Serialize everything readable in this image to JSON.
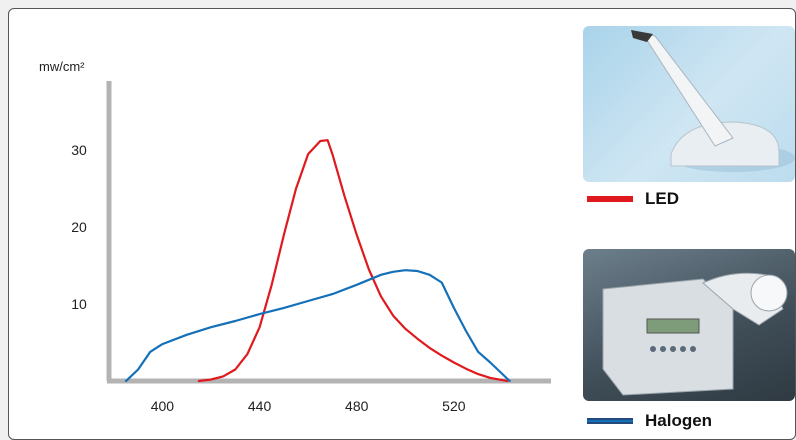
{
  "chart_data": {
    "type": "line",
    "ylabel": "mw/cm²",
    "xlabel": "",
    "x_ticks": [
      400,
      440,
      480,
      520
    ],
    "y_ticks": [
      10,
      20,
      30
    ],
    "xlim": [
      378,
      560
    ],
    "ylim": [
      0,
      39
    ],
    "grid": false,
    "legend_position": "right",
    "series": [
      {
        "name": "LED",
        "color": "#e0191e",
        "x": [
          415,
          420,
          425,
          430,
          435,
          440,
          445,
          450,
          455,
          460,
          465,
          468,
          470,
          475,
          480,
          485,
          490,
          495,
          500,
          505,
          510,
          515,
          520,
          525,
          530,
          535,
          542
        ],
        "y": [
          0,
          0.2,
          0.6,
          1.5,
          3.5,
          7,
          12.5,
          19,
          25,
          29.5,
          31.2,
          31.3,
          29.5,
          24,
          19,
          14.5,
          11,
          8.5,
          6.8,
          5.5,
          4.3,
          3.3,
          2.4,
          1.6,
          0.9,
          0.4,
          0
        ]
      },
      {
        "name": "Halogen",
        "color": "#1470b8",
        "x": [
          385,
          390,
          395,
          400,
          410,
          420,
          430,
          440,
          450,
          460,
          470,
          480,
          490,
          495,
          500,
          505,
          510,
          515,
          520,
          525,
          530,
          535,
          543
        ],
        "y": [
          0,
          1.5,
          3.8,
          4.8,
          6,
          7,
          7.8,
          8.7,
          9.5,
          10.4,
          11.3,
          12.5,
          13.8,
          14.2,
          14.4,
          14.3,
          13.8,
          12.8,
          9.5,
          6.5,
          3.8,
          2.4,
          0
        ]
      }
    ]
  },
  "legend": {
    "led_label": "LED",
    "halogen_label": "Halogen"
  },
  "photos": {
    "led": "led-curing-light-photo",
    "halogen": "halogen-curing-unit-photo"
  },
  "colors": {
    "axis": "#b3b3b3",
    "led": "#e0191e",
    "halogen": "#1470b8"
  }
}
